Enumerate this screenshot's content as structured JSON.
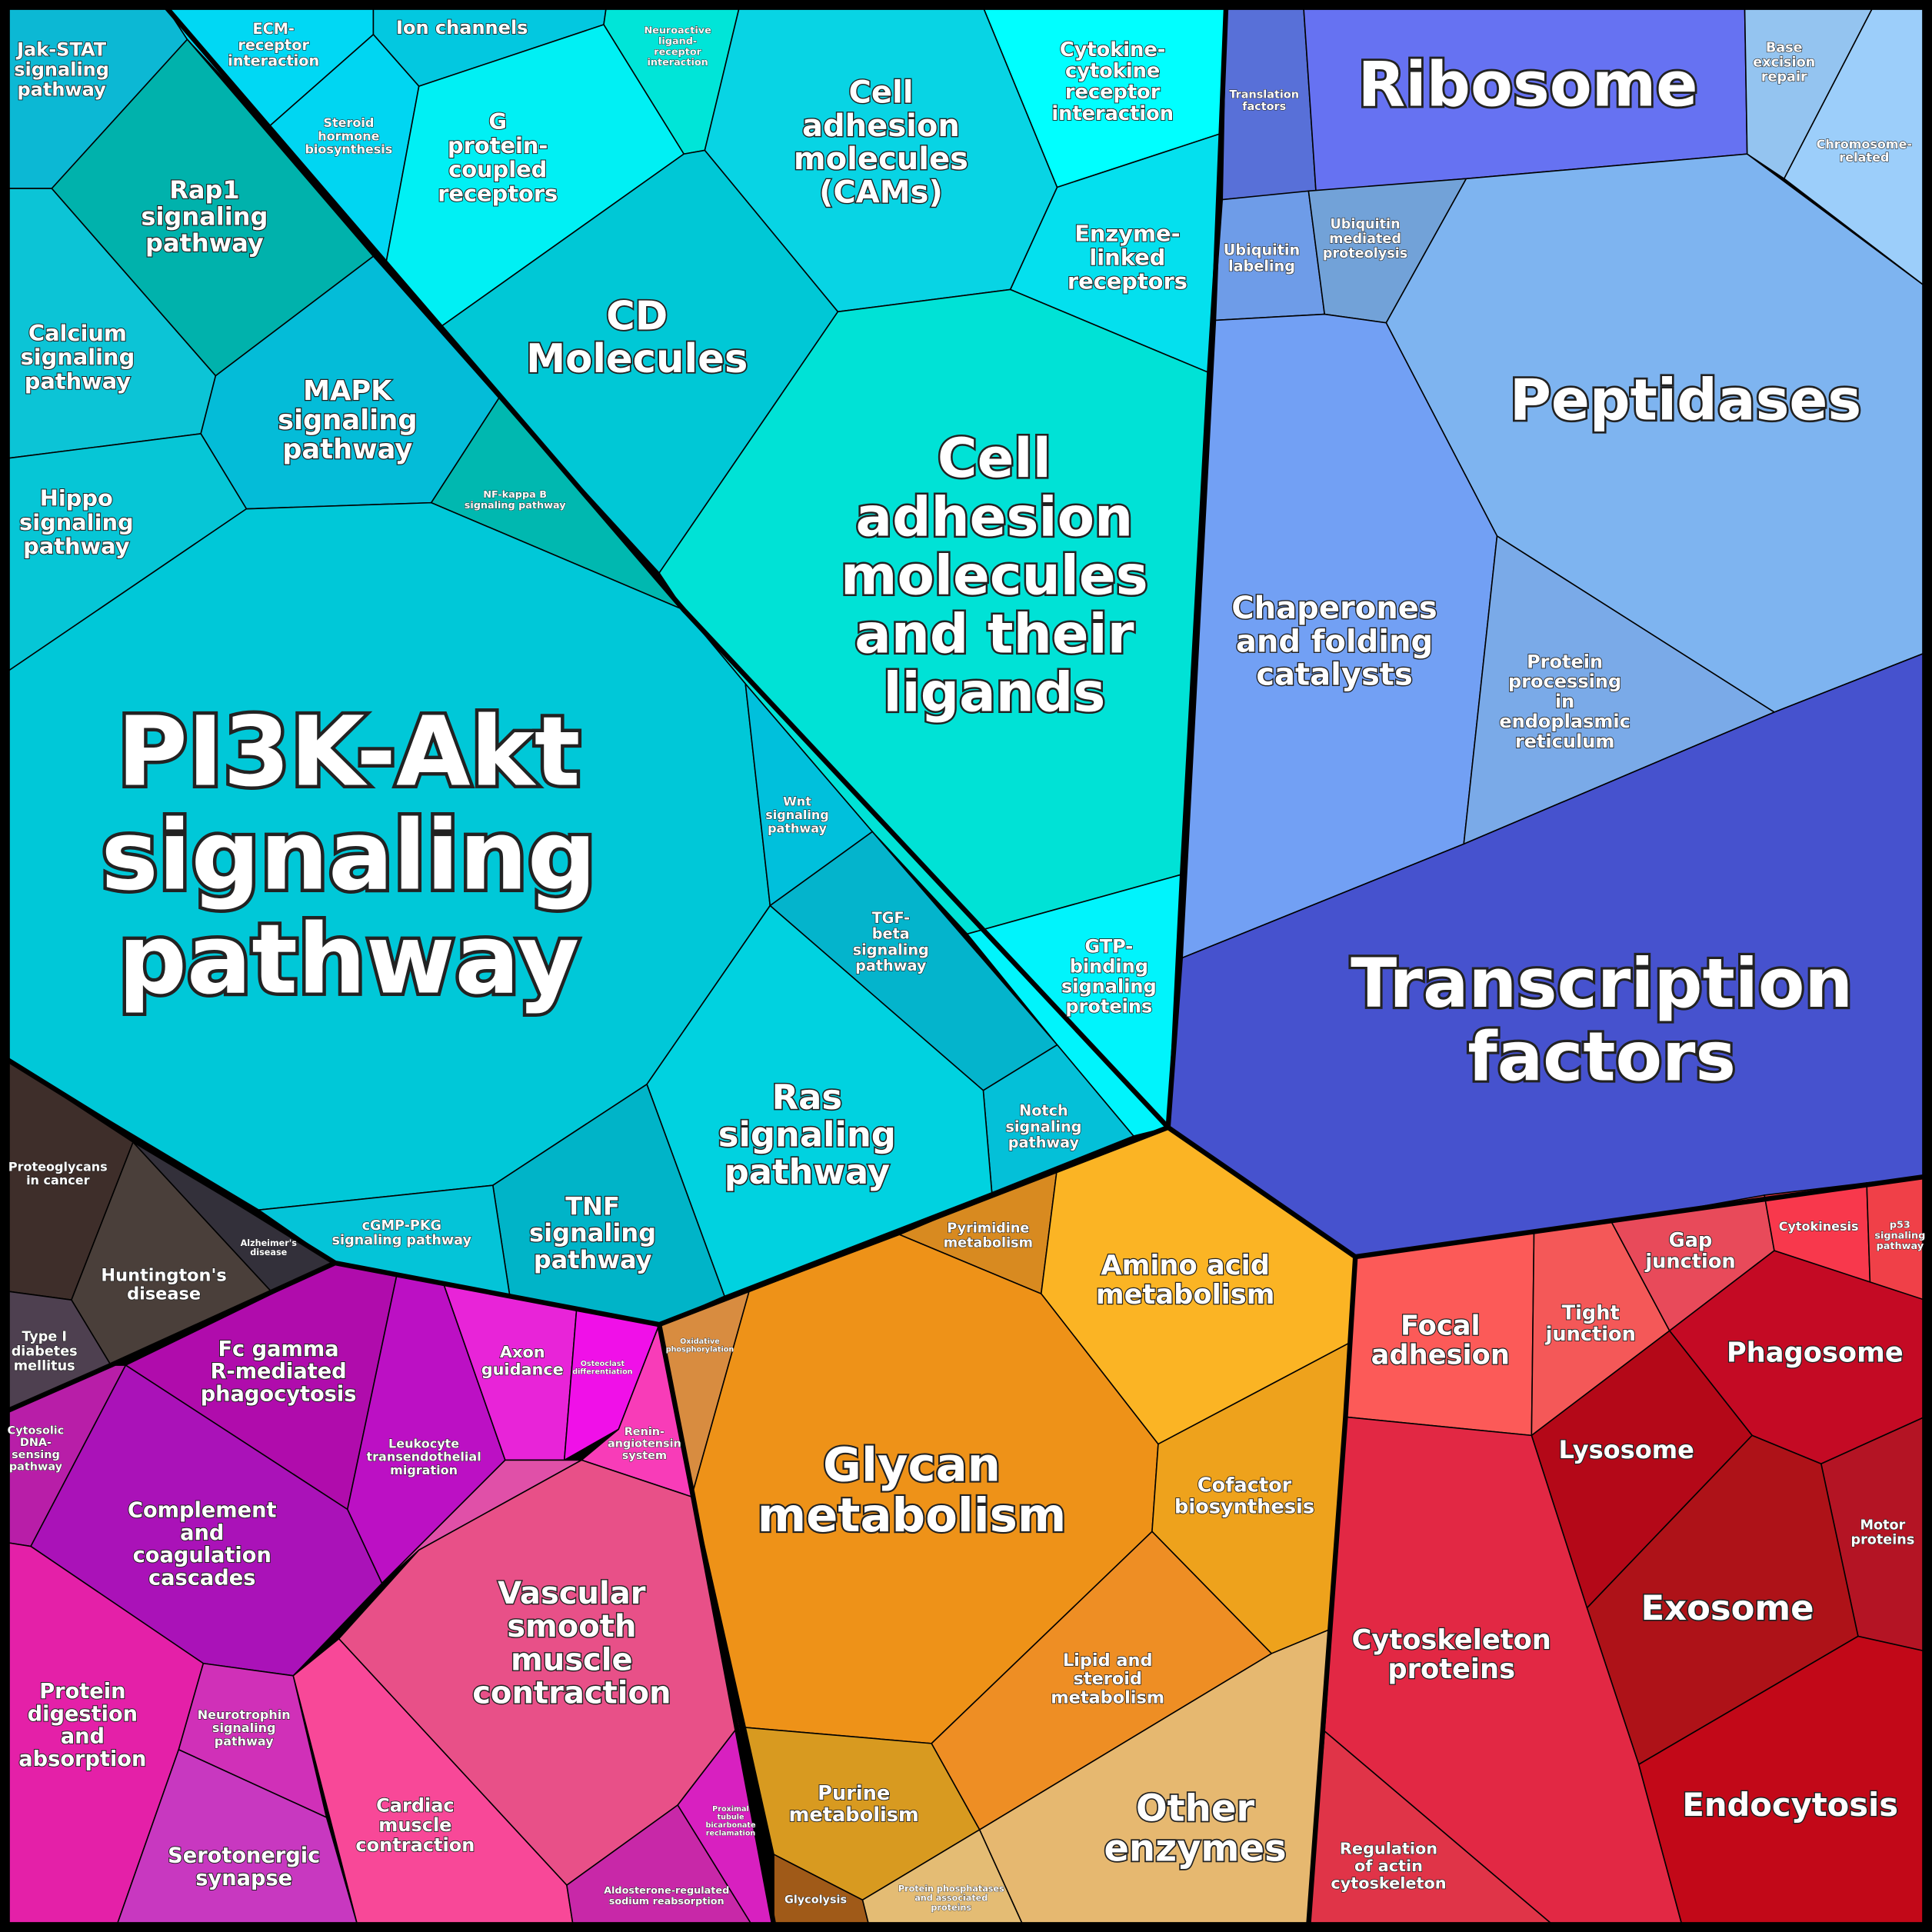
{
  "cells": [
    {
      "label": [
        "Jak-STAT",
        "signaling",
        "pathway"
      ],
      "color": "#0cb8d4"
    },
    {
      "label": [
        "ECM-",
        "receptor",
        "interaction"
      ],
      "color": "#00d8f4"
    },
    {
      "label": [
        "Ion channels"
      ],
      "color": "#03c8e0"
    },
    {
      "label": [
        "Neuroactive",
        "ligand-",
        "receptor",
        "interaction"
      ],
      "color": "#00e5d8"
    },
    {
      "label": [
        "Steroid",
        "hormone",
        "biosynthesis"
      ],
      "color": "#00d6f2"
    },
    {
      "label": [
        "G",
        "protein-",
        "coupled",
        "receptors"
      ],
      "color": "#00f0f4"
    },
    {
      "label": [
        "Cell",
        "adhesion",
        "molecules",
        "(CAMs)"
      ],
      "color": "#08d4e4"
    },
    {
      "label": [
        "Cytokine-",
        "cytokine",
        "receptor",
        "interaction"
      ],
      "color": "#00ffff"
    },
    {
      "label": [
        "Enzyme-",
        "linked",
        "receptors"
      ],
      "color": "#04e0ee"
    },
    {
      "label": [
        "Rap1",
        "signaling",
        "pathway"
      ],
      "color": "#00b2ac"
    },
    {
      "label": [
        "Calcium",
        "signaling",
        "pathway"
      ],
      "color": "#0cc4d6"
    },
    {
      "label": [
        "MAPK",
        "signaling",
        "pathway"
      ],
      "color": "#04bcd8"
    },
    {
      "label": [
        "CD",
        "Molecules"
      ],
      "color": "#00c8d6"
    },
    {
      "label": [
        "NF-kappa B",
        "signaling pathway"
      ],
      "color": "#00b8b0"
    },
    {
      "label": [
        "Hippo",
        "signaling",
        "pathway"
      ],
      "color": "#06c6d6"
    },
    {
      "label": [
        "Cell",
        "adhesion",
        "molecules",
        "and their",
        "ligands"
      ],
      "color": "#00e2d6"
    },
    {
      "label": [
        "PI3K-Akt",
        "signaling",
        "pathway"
      ],
      "color": "#00c8d8"
    },
    {
      "label": [
        "Wnt",
        "signaling",
        "pathway"
      ],
      "color": "#00c0dc"
    },
    {
      "label": [
        "TGF-",
        "beta",
        "signaling",
        "pathway"
      ],
      "color": "#04b4cc"
    },
    {
      "label": [
        "GTP-",
        "binding",
        "signaling",
        "proteins"
      ],
      "color": "#00f4fc"
    },
    {
      "label": [
        "Notch",
        "signaling",
        "pathway"
      ],
      "color": "#04c0d8"
    },
    {
      "label": [
        "Ras",
        "signaling",
        "pathway"
      ],
      "color": "#00d2e0"
    },
    {
      "label": [
        "TNF",
        "signaling",
        "pathway"
      ],
      "color": "#00b4c8"
    },
    {
      "label": [
        "cGMP-PKG",
        "signaling pathway"
      ],
      "color": "#04c4d8"
    },
    {
      "label": [
        "Proteoglycans",
        "in cancer"
      ],
      "color": "#3e2e2a"
    },
    {
      "label": [
        "Huntington's",
        "disease"
      ],
      "color": "#4a3f3a"
    },
    {
      "label": [
        "Alzheimer's",
        "disease"
      ],
      "color": "#33303a"
    },
    {
      "label": [
        "Type I",
        "diabetes",
        "mellitus"
      ],
      "color": "#4e4050"
    },
    {
      "label": [
        "Cytosolic",
        "DNA-",
        "sensing",
        "pathway"
      ],
      "color": "#b81ea8"
    },
    {
      "label": [
        "Fc gamma",
        "R-mediated",
        "phagocytosis"
      ],
      "color": "#b00cac"
    },
    {
      "label": [
        "Leukocyte",
        "transendothelial",
        "migration"
      ],
      "color": "#bc10c4"
    },
    {
      "label": [
        "Axon",
        "guidance"
      ],
      "color": "#e824d8"
    },
    {
      "label": [
        "Osteoclast",
        "differentiation"
      ],
      "color": "#f010e8"
    },
    {
      "label": [
        "Renin-",
        "angiotensin",
        "system"
      ],
      "color": "#f83cb8"
    },
    {
      "color": "#e050a8"
    },
    {
      "label": [
        "Complement",
        "and",
        "coagulation",
        "cascades"
      ],
      "color": "#aa12b8"
    },
    {
      "label": [
        "Vascular",
        "smooth",
        "muscle",
        "contraction"
      ],
      "color": "#e85088"
    },
    {
      "label": [
        "Protein",
        "digestion",
        "and",
        "absorption"
      ],
      "color": "#e420a8"
    },
    {
      "label": [
        "Neurotrophin",
        "signaling",
        "pathway"
      ],
      "color": "#d030b8"
    },
    {
      "label": [
        "Serotonergic",
        "synapse"
      ],
      "color": "#c838c0"
    },
    {
      "label": [
        "Cardiac",
        "muscle",
        "contraction"
      ],
      "color": "#f84898"
    },
    {
      "label": [
        "Proximal",
        "tubule",
        "bicarbonate",
        "reclamation"
      ],
      "color": "#d820c0"
    },
    {
      "label": [
        "Aldosterone-regulated",
        "sodium reabsorption"
      ],
      "color": "#c828a8"
    },
    {
      "label": [
        "Pyrimidine",
        "metabolism"
      ],
      "color": "#d88a20"
    },
    {
      "label": [
        "Amino acid",
        "metabolism"
      ],
      "color": "#fbb424"
    },
    {
      "label": [
        "Oxidative",
        "phosphorylation"
      ],
      "color": "#d88c40"
    },
    {
      "label": [
        "Glycan",
        "metabolism"
      ],
      "color": "#ee9218"
    },
    {
      "label": [
        "Cofactor",
        "biosynthesis"
      ],
      "color": "#eea21c"
    },
    {
      "label": [
        "Lipid and",
        "steroid",
        "metabolism"
      ],
      "color": "#ee8e24"
    },
    {
      "label": [
        "Purine",
        "metabolism"
      ],
      "color": "#d89a20"
    },
    {
      "label": [
        "Other",
        "enzymes"
      ],
      "color": "#e6b870"
    },
    {
      "label": [
        "Protein phosphatases",
        "and associated",
        "proteins"
      ],
      "color": "#e4bc74"
    },
    {
      "label": [
        "Glycolysis"
      ],
      "color": "#a05a18"
    },
    {
      "label": [
        "Translation",
        "factors"
      ],
      "color": "#5870d8"
    },
    {
      "label": [
        "Ribosome"
      ],
      "color": "#6672f2"
    },
    {
      "label": [
        "Base",
        "excision",
        "repair"
      ],
      "color": "#94c4f0"
    },
    {
      "label": [
        "Chromosome-",
        "related"
      ],
      "color": "#9ccefa"
    },
    {
      "label": [
        "Ubiquitin",
        "labeling"
      ],
      "color": "#6e9ce8"
    },
    {
      "label": [
        "Ubiquitin",
        "mediated",
        "proteolysis"
      ],
      "color": "#72a2d8"
    },
    {
      "label": [
        "Peptidases"
      ],
      "color": "#7eb4f0"
    },
    {
      "label": [
        "Chaperones",
        "and folding",
        "catalysts"
      ],
      "color": "#72a0f4"
    },
    {
      "label": [
        "Protein",
        "processing",
        "in",
        "endoplasmic",
        "reticulum"
      ],
      "color": "#7aaae8"
    },
    {
      "label": [
        "Transcription",
        "factors"
      ],
      "color": "#4652ce"
    },
    {
      "label": [
        "Focal",
        "adhesion"
      ],
      "color": "#fc5a58"
    },
    {
      "label": [
        "Tight",
        "junction"
      ],
      "color": "#f45858"
    },
    {
      "label": [
        "Gap",
        "junction"
      ],
      "color": "#e84a5a"
    },
    {
      "label": [
        "Cytokinesis"
      ],
      "color": "#f8384c"
    },
    {
      "label": [
        "p53",
        "signaling",
        "pathway"
      ],
      "color": "#f04048"
    },
    {
      "label": [
        "Phagosome"
      ],
      "color": "#c40a24"
    },
    {
      "label": [
        "Lysosome"
      ],
      "color": "#b40818"
    },
    {
      "label": [
        "Motor",
        "proteins"
      ],
      "color": "#b41424"
    },
    {
      "label": [
        "Exosome"
      ],
      "color": "#ae1218"
    },
    {
      "label": [
        "Cytoskeleton",
        "proteins"
      ],
      "color": "#e22844"
    },
    {
      "label": [
        "Endocytosis"
      ],
      "color": "#c20818"
    },
    {
      "label": [
        "Regulation",
        "of actin",
        "cytoskeleton"
      ],
      "color": "#e03448"
    }
  ]
}
